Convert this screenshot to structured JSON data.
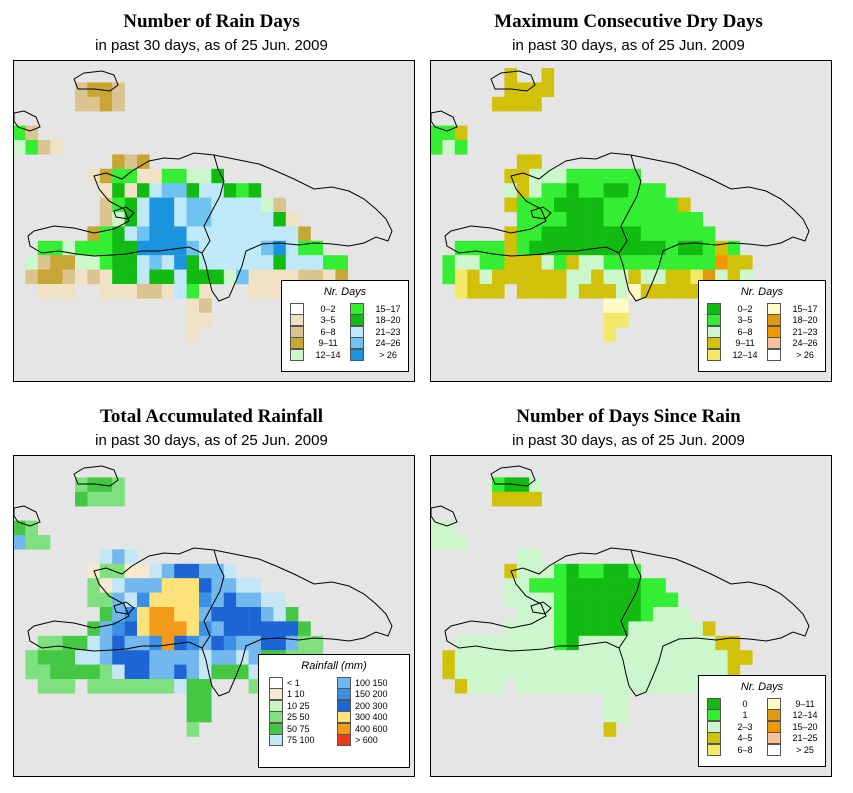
{
  "panels": [
    {
      "id": "rain-days",
      "title": "Number of Rain Days",
      "subtitle": "in past 30 days, as of  25 Jun. 2009",
      "legend": {
        "title": "Nr. Days",
        "items": [
          {
            "label": "0–2",
            "color": "#ffffff"
          },
          {
            "label": "3–5",
            "color": "#f1e2c6"
          },
          {
            "label": "6–8",
            "color": "#dcc491"
          },
          {
            "label": "9–11",
            "color": "#c8a634"
          },
          {
            "label": "12–14",
            "color": "#ccf7cc"
          },
          {
            "label": "15–17",
            "color": "#33ee33"
          },
          {
            "label": "18–20",
            "color": "#11bb11"
          },
          {
            "label": "21–23",
            "color": "#bfe8f8"
          },
          {
            "label": "24–26",
            "color": "#6ec3f0"
          },
          {
            "label": "> 26",
            "color": "#1a94dc"
          }
        ]
      },
      "grid": [
        "................................",
        ".....CDDC.......................",
        ".....CCDC.......................",
        "................................",
        "FC..............................",
        "EFCB............................",
        "........ACA.....................",
        "......BAFFBBFFEEG...............",
        ".......BGBGHIIGHHGFG............",
        ".......CFGHJJHIIHHHHEC..........",
        ".......CEGHJJHIIHHHHHGB.........",
        "......DFGHIJJJHHHHHHHHHA........",
        "..FFEFFFGGJJJJIHHHHHIJHFF.......",
        ".ECDDEEFGGHIHJGHHHHHHGHHHFF.....",
        ".CDDCBCBGGHGGHGGGEIBBBBCCBD.....",
        "..BBB..BBBCCBHFB...BBB..B.......",
        "..............BC.......",
        "..............BB.",
        "..............B.."
      ]
    },
    {
      "id": "dry-days",
      "title": "Maximum Consecutive Dry Days",
      "subtitle": "in past 30 days, as of  25 Jun. 2009",
      "legend": {
        "title": "Nr. Days",
        "items": [
          {
            "label": "0–2",
            "color": "#11bb11"
          },
          {
            "label": "3–5",
            "color": "#33ee33"
          },
          {
            "label": "6–8",
            "color": "#ccf7cc"
          },
          {
            "label": "9–11",
            "color": "#d2c10a"
          },
          {
            "label": "12–14",
            "color": "#f3e868"
          },
          {
            "label": "15–17",
            "color": "#fffac6"
          },
          {
            "label": "18–20",
            "color": "#dd9a0f"
          },
          {
            "label": "21–23",
            "color": "#ee9900"
          },
          {
            "label": "24–26",
            "color": "#f6c29a"
          },
          {
            "label": "> 26",
            "color": "#ffffff"
          }
        ]
      },
      "grid": [
        "......D..D......................",
        "......DDDD......................",
        ".....DDDD.......................",
        "................................",
        "BBD.............................",
        "BCB.............................",
        ".......DD.......................",
        "......DDCCCBBBBBB...............",
        "......CDCBBABBAABBB.............",
        "......DBBBAAAABBBBBBD...........",
        ".......BBBBAAABBBBBBBB..........",
        "......DBBAAAAAAAABBBBBB.........",
        "..BBBBDBAAAAAAAAAAABAABDB.......",
        ".BCCBBDDDCBDCCBBBBBBBBBGDD......",
        ".BEDCDDDDDDCCDCCDCCDDEHCDC......",
        "..EDDD.DDDDCDDDCFDDDDD.D........",
        "..............FF.......",
        "..............EE.",
        "..............E.."
      ]
    },
    {
      "id": "rainfall",
      "title": "Total Accumulated Rainfall",
      "subtitle": "in past 30 days, as of  25 Jun. 2009",
      "legend": {
        "title": "Rainfall (mm)",
        "items": [
          {
            "label": "< 1",
            "color": "#ffffff"
          },
          {
            "label": "1    10",
            "color": "#f6e9cf"
          },
          {
            "label": "10    25",
            "color": "#c8f5c0"
          },
          {
            "label": "25    50",
            "color": "#7ee07e"
          },
          {
            "label": "50    75",
            "color": "#44c844"
          },
          {
            "label": "75   100",
            "color": "#c3e7f5"
          },
          {
            "label": "100  150",
            "color": "#72b7ee"
          },
          {
            "label": "150  200",
            "color": "#3a8fe6"
          },
          {
            "label": "200  300",
            "color": "#1d64d4"
          },
          {
            "label": "300  400",
            "color": "#fde27a"
          },
          {
            "label": "400  600",
            "color": "#f39a1a"
          },
          {
            "label": "> 600",
            "color": "#ee3a1a"
          }
        ]
      },
      "grid": [
        "................................",
        ".....DEED.......................",
        ".....EDDD.......................",
        "................................",
        "ED..............................",
        "GDD.............................",
        ".......FGF.......................",
        "......CDDCCFGHHGGF..............",
        "......DCFGGGJJJHGGFF............",
        "......DDGFIJJJJIGHGGFF..........",
        ".......EGIJKKJJGHHHHGFE.........",
        "......EGIHJKKKJIGHHHHHHE........",
        "..DDEEFGHGGIKHIGHIGGHHGDD.......",
        ".DEEEFFGHHHGGGGFGGFGEEDDD.......",
        ".DDEEEEDFHHGGHGFEEEFEDDEE.......",
        "..DDD.DDDDDDDFEE...DDD.E........",
        "..............EE.......",
        "..............EE.",
        "..............D.."
      ]
    },
    {
      "id": "since-rain",
      "title": "Number of Days Since Rain",
      "subtitle": "in past 30 days, as of  25 Jun. 2009",
      "legend": {
        "title": "Nr. Days",
        "items": [
          {
            "label": "0",
            "color": "#11bb11"
          },
          {
            "label": "1",
            "color": "#33ee33"
          },
          {
            "label": "2–3",
            "color": "#ccf7cc"
          },
          {
            "label": "4–5",
            "color": "#d2c10a"
          },
          {
            "label": "6–8",
            "color": "#f3e868"
          },
          {
            "label": "9–11",
            "color": "#fffac6"
          },
          {
            "label": "12–14",
            "color": "#dd9a0f"
          },
          {
            "label": "15–20",
            "color": "#ee9900"
          },
          {
            "label": "21–25",
            "color": "#f6c29a"
          },
          {
            "label": "> 25",
            "color": "#ffffff"
          }
        ]
      },
      "grid": [
        "................................",
        ".....BAAC.......................",
        ".....DDDD.......................",
        "................................",
        "CC..............................",
        "CCC.............................",
        ".......CC.......................",
        "......DCCCBABBAAB...............",
        "......CCBBBAAAAAABB.............",
        "......CCCCBAAAAAABBB............",
        ".......CCCBAAAAAABCCC...........",
        "......CCCCBAAAAACCCCCCD.........",
        "..CCCCCCCCBACCCCCCCCCCCDD.......",
        ".DCCCCCCCCCCCCCCCCCCCCCCDD......",
        ".DCCCCCCCCCCCCCCCCCCCCCCD.......",
        "..DCCC.CCCCCCCCCCCCCCC.D........",
        "..............CC.......",
        "..............CC.",
        "..............D.."
      ]
    }
  ]
}
